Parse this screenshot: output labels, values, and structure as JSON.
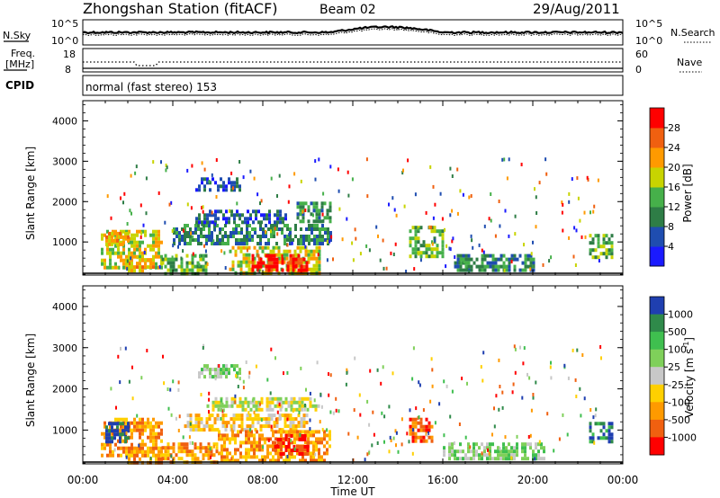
{
  "header": {
    "station": "Zhongshan Station (fitACF)",
    "beam": "Beam 02",
    "date": "29/Aug/2011"
  },
  "strip_labels": {
    "nsky": "N.Sky",
    "nsearch": "N.Search",
    "freq_l1": "Freq.",
    "freq_l2": "[MHz]",
    "nave": "Nave",
    "cpid": "CPID",
    "cpid_value": "normal (fast stereo) 153",
    "noise_top_left": "10^5",
    "noise_bot_left": "10^0",
    "noise_top_right": "10^5",
    "noise_bot_right": "10^0",
    "freq_top": "18",
    "freq_bot": "8",
    "nave_top": "60",
    "nave_bot": "0"
  },
  "axes": {
    "ylabel": "Slant Range [km]",
    "xlabel": "Time UT",
    "yticks": [
      "1000",
      "2000",
      "3000",
      "4000"
    ],
    "xticks": [
      "00:00",
      "04:00",
      "08:00",
      "12:00",
      "16:00",
      "20:00",
      "00:00"
    ]
  },
  "chart_data": [
    {
      "type": "heatmap",
      "quantity": "power",
      "colorbar_label": "Power [dB]",
      "colorbar_ticks": [
        "4",
        "8",
        "12",
        "16",
        "20",
        "24",
        "28"
      ],
      "colors": [
        "#1a1aff",
        "#1f4db0",
        "#2e7d46",
        "#46b04a",
        "#c8d400",
        "#ff9a00",
        "#f06010",
        "#ff0000"
      ],
      "xlim": [
        0,
        24
      ],
      "ylim": [
        180,
        4500
      ],
      "regions": [
        {
          "t0": 0.8,
          "t1": 3.5,
          "r0": 350,
          "r1": 1300,
          "level": 4
        },
        {
          "t0": 1.0,
          "t1": 2.2,
          "r0": 900,
          "r1": 1250,
          "level": 5
        },
        {
          "t0": 2.0,
          "t1": 3.2,
          "r0": 300,
          "r1": 600,
          "level": 5
        },
        {
          "t0": 3.5,
          "t1": 5.5,
          "r0": 200,
          "r1": 700,
          "level": 3
        },
        {
          "t0": 4.0,
          "t1": 11.0,
          "r0": 1000,
          "r1": 1450,
          "level": 2
        },
        {
          "t0": 6.5,
          "t1": 10.5,
          "r0": 250,
          "r1": 900,
          "level": 4
        },
        {
          "t0": 7.5,
          "t1": 10.0,
          "r0": 300,
          "r1": 700,
          "level": 7
        },
        {
          "t0": 5.0,
          "t1": 9.0,
          "r0": 1500,
          "r1": 1800,
          "level": 1
        },
        {
          "t0": 9.5,
          "t1": 11.0,
          "r0": 1500,
          "r1": 2000,
          "level": 2
        },
        {
          "t0": 5.0,
          "t1": 7.0,
          "r0": 2300,
          "r1": 2600,
          "level": 1
        },
        {
          "t0": 14.5,
          "t1": 16.0,
          "r0": 600,
          "r1": 1400,
          "level": 3
        },
        {
          "t0": 16.5,
          "t1": 20.0,
          "r0": 300,
          "r1": 700,
          "level": 2
        },
        {
          "t0": 22.5,
          "t1": 23.5,
          "r0": 600,
          "r1": 1200,
          "level": 3
        }
      ]
    },
    {
      "type": "heatmap",
      "quantity": "velocity",
      "colorbar_label": "Velocity [m s-1]",
      "colorbar_ticks": [
        "1000",
        "500",
        "100",
        "25",
        "-25",
        "-100",
        "-500",
        "-1000"
      ],
      "colors": [
        "#1f3fb0",
        "#2f8a4a",
        "#3fbf4f",
        "#7fd05a",
        "#c8c8c8",
        "#ffd000",
        "#ff9a00",
        "#f06010",
        "#ff0000"
      ],
      "xlim": [
        0,
        24
      ],
      "ylim": [
        180,
        4500
      ],
      "regions": [
        {
          "t0": 0.8,
          "t1": 3.5,
          "r0": 350,
          "r1": 1300,
          "level": 6
        },
        {
          "t0": 1.0,
          "t1": 2.0,
          "r0": 700,
          "r1": 1200,
          "level": 0
        },
        {
          "t0": 2.0,
          "t1": 3.5,
          "r0": 250,
          "r1": 600,
          "level": 6
        },
        {
          "t0": 3.5,
          "t1": 6.0,
          "r0": 200,
          "r1": 700,
          "level": 6
        },
        {
          "t0": 4.5,
          "t1": 10.0,
          "r0": 1000,
          "r1": 1400,
          "level": 5
        },
        {
          "t0": 6.0,
          "t1": 11.0,
          "r0": 250,
          "r1": 1000,
          "level": 6
        },
        {
          "t0": 8.5,
          "t1": 10.0,
          "r0": 400,
          "r1": 900,
          "level": 8
        },
        {
          "t0": 5.5,
          "t1": 10.5,
          "r0": 1500,
          "r1": 1800,
          "level": 4
        },
        {
          "t0": 5.0,
          "t1": 7.0,
          "r0": 2300,
          "r1": 2600,
          "level": 3
        },
        {
          "t0": 14.5,
          "t1": 15.5,
          "r0": 700,
          "r1": 1300,
          "level": 7
        },
        {
          "t0": 16.0,
          "t1": 20.5,
          "r0": 350,
          "r1": 700,
          "level": 3
        },
        {
          "t0": 22.5,
          "t1": 23.5,
          "r0": 700,
          "r1": 1200,
          "level": 1
        }
      ]
    }
  ]
}
